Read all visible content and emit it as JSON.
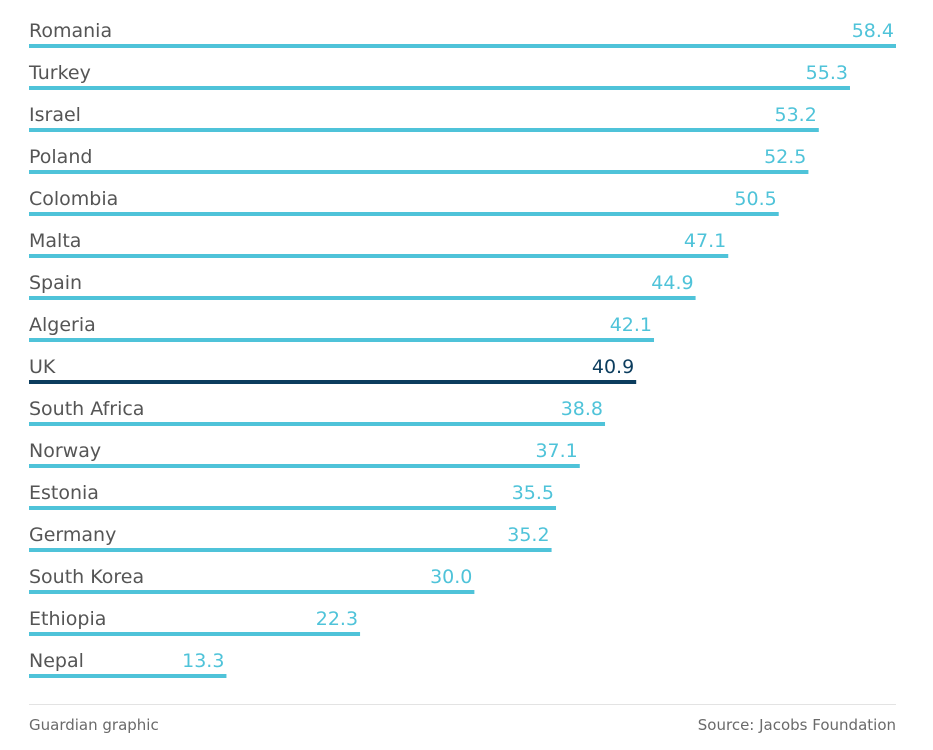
{
  "colors": {
    "bar": "#4fc3d9",
    "highlight": "#0c3d5e",
    "label": "#555555",
    "value": "#4fc3d9"
  },
  "chart_data": {
    "type": "bar",
    "orientation": "horizontal",
    "categories": [
      "Romania",
      "Turkey",
      "Israel",
      "Poland",
      "Colombia",
      "Malta",
      "Spain",
      "Algeria",
      "UK",
      "South Africa",
      "Norway",
      "Estonia",
      "Germany",
      "South Korea",
      "Ethiopia",
      "Nepal"
    ],
    "values": [
      58.4,
      55.3,
      53.2,
      52.5,
      50.5,
      47.1,
      44.9,
      42.1,
      40.9,
      38.8,
      37.1,
      35.5,
      35.2,
      30.0,
      22.3,
      13.3
    ],
    "value_labels": [
      "58.4",
      "55.3",
      "53.2",
      "52.5",
      "50.5",
      "47.1",
      "44.9",
      "42.1",
      "40.9",
      "38.8",
      "37.1",
      "35.5",
      "35.2",
      "30.0",
      "22.3",
      "13.3"
    ],
    "highlight": "UK",
    "xlim": [
      0,
      58.4
    ],
    "grid": false,
    "legend": "none"
  },
  "footer": {
    "credit": "Guardian graphic",
    "source": "Source: Jacobs Foundation"
  }
}
